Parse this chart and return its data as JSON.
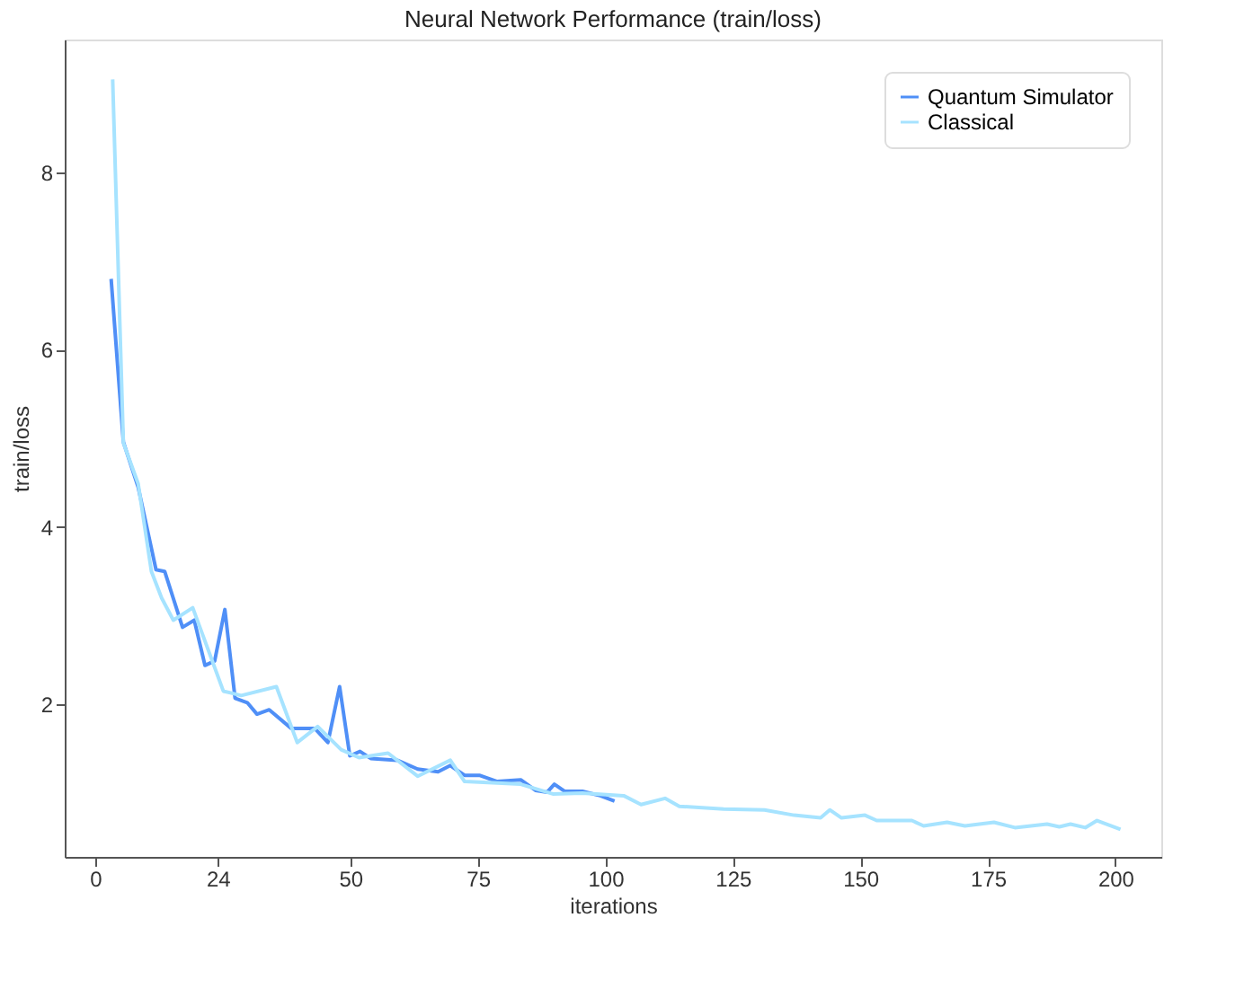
{
  "chart_data": {
    "type": "line",
    "title": "Neural Network Performance (train/loss)",
    "xlabel": "iterations",
    "ylabel": "train/loss",
    "xlim": [
      -6,
      209
    ],
    "xticks": [
      0,
      24,
      50,
      75,
      100,
      125,
      150,
      175,
      200
    ],
    "ylim": [
      0.28,
      9.5
    ],
    "yticks": [
      2,
      4,
      6,
      8
    ],
    "grid": false,
    "legend": "top right",
    "line_style": "solid",
    "marker": "none",
    "series": [
      {
        "name": "Quantum Simulator",
        "color": "#4f8ff7",
        "x": [
          3.1,
          5.5,
          8.4,
          11.9,
          13.6,
          17.1,
          19.4,
          21.5,
          23.4,
          25.4,
          27.4,
          29.8,
          31.7,
          34.1,
          38.4,
          43.0,
          45.6,
          47.9,
          49.9,
          51.9,
          54.0,
          59.2,
          63.2,
          67.2,
          69.6,
          72.4,
          75.3,
          78.8,
          83.4,
          86.3,
          88.6,
          90.0,
          92.0,
          95.5,
          99.0,
          101.8
        ],
        "values": [
          6.8,
          4.96,
          4.45,
          3.52,
          3.5,
          2.87,
          2.95,
          2.44,
          2.49,
          3.07,
          2.07,
          2.02,
          1.89,
          1.94,
          1.73,
          1.73,
          1.57,
          2.2,
          1.42,
          1.47,
          1.39,
          1.37,
          1.27,
          1.24,
          1.31,
          1.2,
          1.2,
          1.13,
          1.15,
          1.03,
          1.01,
          1.1,
          1.02,
          1.02,
          0.97,
          0.91
        ]
      },
      {
        "name": "Classical",
        "color": "#a6e3ff",
        "x": [
          3.4,
          5.5,
          8.4,
          11.0,
          13.0,
          15.3,
          19.1,
          25.1,
          28.6,
          35.5,
          39.6,
          43.6,
          48.2,
          51.7,
          57.4,
          63.2,
          69.6,
          72.4,
          83.4,
          89.7,
          95.5,
          103.6,
          107.0,
          111.7,
          114.5,
          123.2,
          131.2,
          137.0,
          142.2,
          144.0,
          146.3,
          150.9,
          153.2,
          160.1,
          162.4,
          167.0,
          170.5,
          176.2,
          180.3,
          186.6,
          189.0,
          191.2,
          194.1,
          196.4,
          201.0
        ],
        "values": [
          9.05,
          4.95,
          4.49,
          3.5,
          3.2,
          2.95,
          3.09,
          2.15,
          2.1,
          2.2,
          1.57,
          1.75,
          1.49,
          1.4,
          1.45,
          1.19,
          1.37,
          1.13,
          1.1,
          0.99,
          1.0,
          0.97,
          0.87,
          0.94,
          0.85,
          0.82,
          0.81,
          0.75,
          0.72,
          0.81,
          0.72,
          0.75,
          0.69,
          0.69,
          0.63,
          0.67,
          0.63,
          0.67,
          0.61,
          0.65,
          0.62,
          0.65,
          0.61,
          0.69,
          0.59
        ]
      }
    ]
  }
}
